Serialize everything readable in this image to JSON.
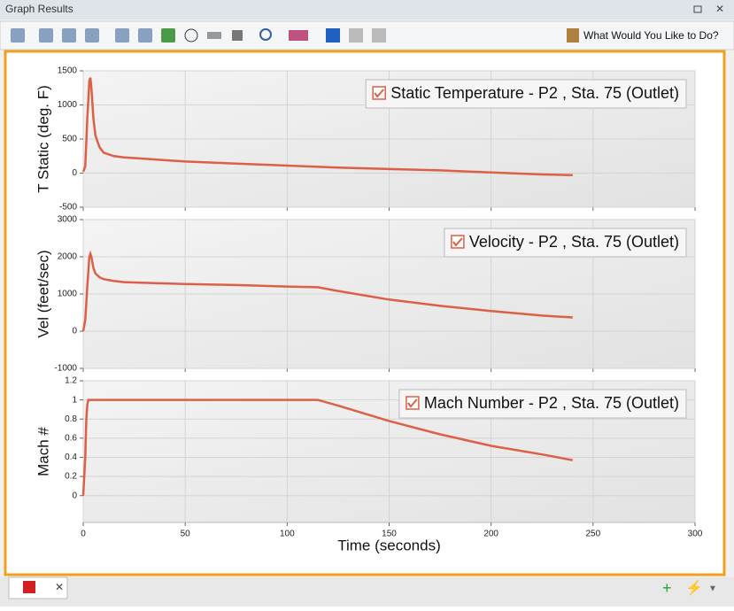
{
  "window": {
    "title": "Graph Results",
    "assistant": "What Would You Like to Do?"
  },
  "chart_data": [
    {
      "type": "line",
      "y_label": "T Static (deg. F)",
      "ylim": [
        -500,
        1500
      ],
      "yticks": [
        -500,
        0,
        500,
        1000,
        1500
      ],
      "grid": true,
      "legend": "upper right",
      "x": [
        0,
        1,
        2,
        3,
        3.5,
        4,
        5,
        6,
        8,
        10,
        15,
        20,
        30,
        40,
        50,
        75,
        100,
        125,
        150,
        175,
        200,
        225,
        240
      ],
      "series": [
        {
          "name": "Static Temperature - P2 , Sta. 75 (Outlet)",
          "color": "#dd5f47",
          "values": [
            20,
            100,
            800,
            1350,
            1400,
            1250,
            800,
            550,
            380,
            300,
            250,
            230,
            210,
            190,
            170,
            140,
            110,
            80,
            60,
            40,
            10,
            -20,
            -30
          ]
        }
      ]
    },
    {
      "type": "line",
      "y_label": "Vel (feet/sec)",
      "ylim": [
        -1000,
        3000
      ],
      "yticks": [
        -1000,
        0,
        1000,
        2000,
        3000
      ],
      "grid": true,
      "legend": "upper right",
      "x": [
        0,
        1,
        2,
        3,
        3.5,
        4,
        5,
        6,
        8,
        10,
        15,
        20,
        30,
        50,
        75,
        100,
        115,
        125,
        150,
        175,
        200,
        225,
        240
      ],
      "series": [
        {
          "name": "Velocity - P2 , Sta. 75 (Outlet)",
          "color": "#dd5f47",
          "values": [
            0,
            300,
            1200,
            2000,
            2080,
            2000,
            1700,
            1550,
            1450,
            1400,
            1350,
            1320,
            1300,
            1270,
            1240,
            1200,
            1180,
            1080,
            850,
            680,
            540,
            420,
            370
          ]
        }
      ]
    },
    {
      "type": "line",
      "y_label": "Mach #",
      "x_label": "Time (seconds)",
      "xlim": [
        0,
        300
      ],
      "xticks": [
        0,
        50,
        100,
        150,
        200,
        250,
        300
      ],
      "ylim": [
        -0.28,
        1.2
      ],
      "yticks": [
        0,
        0.2,
        0.4,
        0.6,
        0.8,
        1,
        1.2
      ],
      "grid": true,
      "legend": "upper right",
      "x": [
        0,
        1,
        1.5,
        2,
        2.5,
        3,
        115,
        125,
        150,
        175,
        200,
        225,
        240
      ],
      "series": [
        {
          "name": "Mach Number - P2 , Sta. 75 (Outlet)",
          "color": "#dd5f47",
          "values": [
            0,
            0.4,
            0.8,
            0.95,
            1,
            1,
            1,
            0.94,
            0.78,
            0.64,
            0.52,
            0.43,
            0.37
          ]
        }
      ]
    }
  ]
}
